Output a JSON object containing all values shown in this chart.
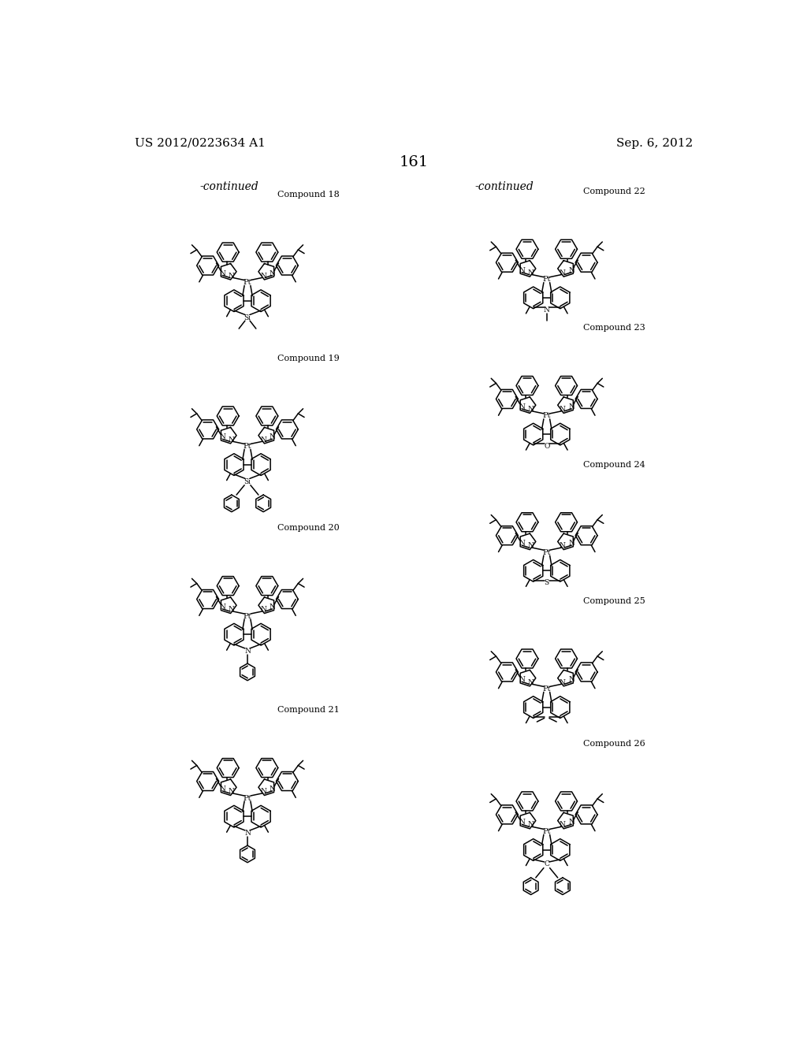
{
  "background_color": "#ffffff",
  "page_header_left": "US 2012/0223634 A1",
  "page_header_right": "Sep. 6, 2012",
  "page_number": "161",
  "left_continued": "-continued",
  "right_continued": "-continued",
  "font_size_header": 11,
  "font_size_compound": 8,
  "font_size_page_num": 14,
  "font_size_continued": 10
}
